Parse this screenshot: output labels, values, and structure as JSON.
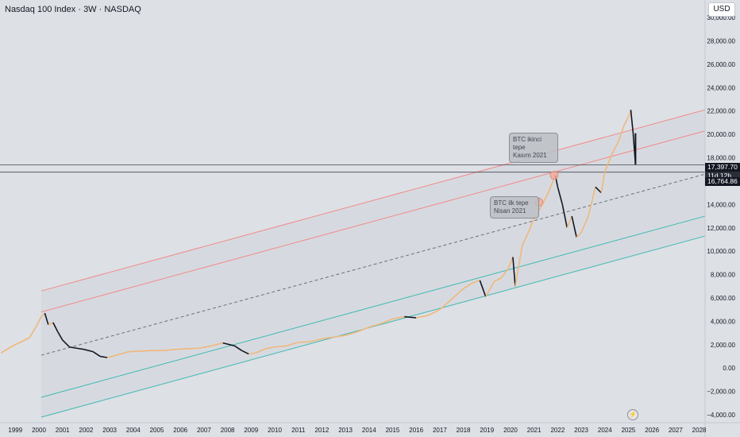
{
  "header": {
    "title": "Nasdaq 100 Index · 3W · NASDAQ",
    "currency": "USD"
  },
  "chart_data": {
    "type": "candlestick",
    "title": "Nasdaq 100 Index · 3W · NASDAQ",
    "ylim": [
      -4200,
      31500
    ],
    "xlim": [
      1998.35,
      2028.25
    ],
    "y_ticks": [
      -4000,
      -2000,
      0,
      2000,
      4000,
      6000,
      8000,
      10000,
      12000,
      14000,
      16000,
      18000,
      20000,
      22000,
      24000,
      26000,
      28000,
      30000
    ],
    "y_tick_labels": [
      "−4,000.00",
      "−2,000.00",
      "0.00",
      "2,000.00",
      "4,000.00",
      "6,000.00",
      "8,000.00",
      "10,000.00",
      "12,000.00",
      "14,000.00",
      "16,000.00",
      "18,000.00",
      "20,000.00",
      "22,000.00",
      "24,000.00",
      "26,000.00",
      "28,000.00",
      "30,000.00"
    ],
    "x_tick_labels": [
      "1999",
      "2000",
      "2001",
      "2002",
      "2003",
      "2004",
      "2005",
      "2006",
      "2007",
      "2008",
      "2009",
      "2010",
      "2011",
      "2012",
      "2013",
      "2014",
      "2015",
      "2016",
      "2017",
      "2018",
      "2019",
      "2020",
      "2021",
      "2022",
      "2023",
      "2024",
      "2025",
      "2026",
      "2027",
      "2028"
    ],
    "series_path": [
      [
        1998.4,
        1300
      ],
      [
        1998.8,
        1800
      ],
      [
        1999.2,
        2200
      ],
      [
        1999.6,
        2600
      ],
      [
        1999.9,
        3600
      ],
      [
        2000.1,
        4400
      ],
      [
        2000.25,
        4700
      ],
      [
        2000.4,
        3700
      ],
      [
        2000.6,
        3900
      ],
      [
        2000.8,
        3100
      ],
      [
        2001.0,
        2400
      ],
      [
        2001.3,
        1800
      ],
      [
        2001.6,
        1700
      ],
      [
        2001.9,
        1600
      ],
      [
        2002.3,
        1400
      ],
      [
        2002.6,
        1000
      ],
      [
        2002.9,
        900
      ],
      [
        2003.3,
        1100
      ],
      [
        2003.8,
        1400
      ],
      [
        2004.3,
        1450
      ],
      [
        2004.8,
        1500
      ],
      [
        2005.3,
        1500
      ],
      [
        2005.8,
        1600
      ],
      [
        2006.3,
        1650
      ],
      [
        2006.8,
        1700
      ],
      [
        2007.3,
        1900
      ],
      [
        2007.8,
        2150
      ],
      [
        2008.3,
        1900
      ],
      [
        2008.6,
        1500
      ],
      [
        2008.9,
        1200
      ],
      [
        2009.2,
        1300
      ],
      [
        2009.6,
        1650
      ],
      [
        2010.0,
        1800
      ],
      [
        2010.5,
        1900
      ],
      [
        2011.0,
        2200
      ],
      [
        2011.5,
        2250
      ],
      [
        2012.0,
        2500
      ],
      [
        2012.5,
        2650
      ],
      [
        2013.0,
        2800
      ],
      [
        2013.5,
        3100
      ],
      [
        2014.0,
        3500
      ],
      [
        2014.5,
        3800
      ],
      [
        2015.0,
        4200
      ],
      [
        2015.5,
        4400
      ],
      [
        2016.0,
        4300
      ],
      [
        2016.5,
        4500
      ],
      [
        2017.0,
        5000
      ],
      [
        2017.5,
        5900
      ],
      [
        2018.0,
        6800
      ],
      [
        2018.4,
        7300
      ],
      [
        2018.7,
        7500
      ],
      [
        2018.95,
        6100
      ],
      [
        2019.3,
        7400
      ],
      [
        2019.6,
        7700
      ],
      [
        2019.9,
        8500
      ],
      [
        2020.1,
        9500
      ],
      [
        2020.2,
        7000
      ],
      [
        2020.5,
        10500
      ],
      [
        2020.8,
        11800
      ],
      [
        2021.0,
        12900
      ],
      [
        2021.3,
        13800
      ],
      [
        2021.6,
        15000
      ],
      [
        2021.9,
        16500
      ],
      [
        2022.0,
        15500
      ],
      [
        2022.2,
        14000
      ],
      [
        2022.4,
        12000
      ],
      [
        2022.6,
        13000
      ],
      [
        2022.8,
        11200
      ],
      [
        2023.0,
        11600
      ],
      [
        2023.3,
        13000
      ],
      [
        2023.6,
        15500
      ],
      [
        2023.85,
        15000
      ],
      [
        2024.0,
        16800
      ],
      [
        2024.3,
        18300
      ],
      [
        2024.6,
        19500
      ],
      [
        2024.8,
        20700
      ],
      [
        2025.0,
        21500
      ],
      [
        2025.1,
        22100
      ],
      [
        2025.2,
        20100
      ],
      [
        2025.3,
        17400
      ]
    ],
    "channel_lines": [
      {
        "color": "#f28b8b",
        "x": [
          2000.1,
          2028.25
        ],
        "y": [
          6600,
          22100
        ]
      },
      {
        "color": "#f28b8b",
        "x": [
          2000.1,
          2028.25
        ],
        "y": [
          4800,
          20300
        ]
      },
      {
        "color": "#6b6f78",
        "dashed": true,
        "x": [
          2000.1,
          2028.25
        ],
        "y": [
          1100,
          16600
        ]
      },
      {
        "color": "#3cb8b0",
        "x": [
          2000.1,
          2028.25
        ],
        "y": [
          -2500,
          13000
        ]
      },
      {
        "color": "#3cb8b0",
        "x": [
          2000.1,
          2028.25
        ],
        "y": [
          -4200,
          11300
        ]
      }
    ],
    "horizontal_lines": [
      17398,
      16765
    ],
    "annotations": [
      {
        "lines": [
          "BTC ikinci tepe",
          "Kasım 2021"
        ],
        "x": 2021.85,
        "y": 16500
      },
      {
        "lines": [
          "BTC ilk tepe",
          "Nisan 2021"
        ],
        "x": 2021.2,
        "y": 14200
      }
    ],
    "price_labels": [
      "17,397.70",
      "11d 12h",
      "16,764.86"
    ],
    "colors": {
      "up": "#f0b77b",
      "down": "#131722",
      "background": "#dde0e5"
    }
  }
}
